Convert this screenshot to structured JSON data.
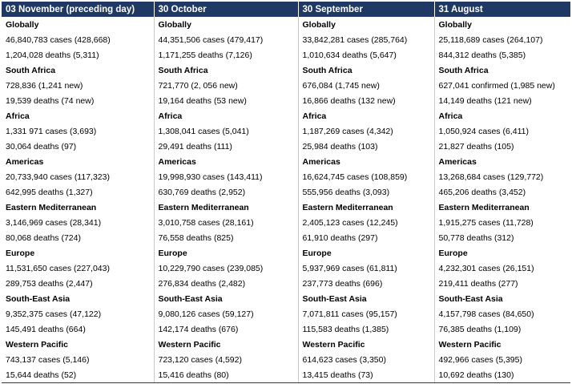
{
  "columns": [
    "03 November (preceding day)",
    "30 October",
    "30 September",
    "31 August"
  ],
  "rows": [
    {
      "type": "region",
      "cells": [
        "Globally",
        "Globally",
        "Globally",
        "Globally"
      ]
    },
    {
      "type": "data",
      "cells": [
        "46,840,783 cases (428,668)",
        "44,351,506 cases (479,417)",
        "33,842,281 cases (285,764)",
        "25,118,689 cases (264,107)"
      ]
    },
    {
      "type": "data",
      "cells": [
        "1,204,028 deaths (5,311)",
        "1,171,255 deaths (7,126)",
        "1,010,634 deaths (5,647)",
        "844,312 deaths (5,385)"
      ]
    },
    {
      "type": "region",
      "cells": [
        "South Africa",
        "South Africa",
        "South Africa",
        "South Africa"
      ]
    },
    {
      "type": "data",
      "cells": [
        "728,836 (1,241 new)",
        "721,770 (2, 056 new)",
        "676,084 (1,745 new)",
        "627,041 confirmed (1,985 new)"
      ]
    },
    {
      "type": "data",
      "cells": [
        "19,539 deaths (74 new)",
        "19,164 deaths (53 new)",
        "16,866 deaths (132 new)",
        "14,149 deaths (121 new)"
      ]
    },
    {
      "type": "region",
      "cells": [
        "Africa",
        "Africa",
        "Africa",
        "Africa"
      ]
    },
    {
      "type": "data",
      "cells": [
        "1,331 971 cases (3,693)",
        "1,308,041 cases (5,041)",
        "1,187,269 cases (4,342)",
        "1,050,924 cases (6,411)"
      ]
    },
    {
      "type": "data",
      "cells": [
        "30,064 deaths (97)",
        "29,491 deaths (111)",
        "25,984 deaths (103)",
        "21,827 deaths (105)"
      ]
    },
    {
      "type": "region",
      "cells": [
        "Americas",
        "Americas",
        "Americas",
        "Americas"
      ]
    },
    {
      "type": "data",
      "cells": [
        "20,733,940 cases (117,323)",
        "19,998,930 cases (143,411)",
        "16,624,745 cases (108,859)",
        "13,268,684 cases (129,772)"
      ]
    },
    {
      "type": "data",
      "cells": [
        "642,995 deaths (1,327)",
        "630,769 deaths (2,952)",
        "555,956 deaths (3,093)",
        "465,206 deaths (3,452)"
      ]
    },
    {
      "type": "region",
      "cells": [
        "Eastern Mediterranean",
        "Eastern Mediterranean",
        "Eastern Mediterranean",
        "Eastern Mediterranean"
      ]
    },
    {
      "type": "data",
      "cells": [
        "3,146,969 cases (28,341)",
        "3,010,758 cases (28,161)",
        "2,405,123 cases (12,245)",
        "1,915,275 cases (11,728)"
      ]
    },
    {
      "type": "data",
      "cells": [
        "80,068 deaths (724)",
        "76,558 deaths (825)",
        "61,910 deaths (297)",
        "50,778 deaths (312)"
      ]
    },
    {
      "type": "region",
      "cells": [
        "Europe",
        "Europe",
        "Europe",
        "Europe"
      ]
    },
    {
      "type": "data",
      "cells": [
        "11,531,650 cases (227,043)",
        "10,229,790 cases (239,085)",
        "5,937,969 cases (61,811)",
        "4,232,301 cases (26,151)"
      ]
    },
    {
      "type": "data",
      "cells": [
        "289,753 deaths (2,447)",
        "276,834 deaths (2,482)",
        "237,773 deaths (696)",
        "219,411 deaths (277)"
      ]
    },
    {
      "type": "region",
      "cells": [
        "South-East Asia",
        "South-East Asia",
        "South-East Asia",
        "South-East Asia"
      ]
    },
    {
      "type": "data",
      "cells": [
        "9,352,375 cases (47,122)",
        "9,080,126 cases (59,127)",
        "7,071,811 cases (95,157)",
        "4,157,798 cases (84,650)"
      ]
    },
    {
      "type": "data",
      "cells": [
        "145,491 deaths (664)",
        "142,174 deaths (676)",
        "115,583 deaths (1,385)",
        "76,385 deaths (1,109)"
      ]
    },
    {
      "type": "region",
      "cells": [
        "Western Pacific",
        "Western Pacific",
        "Western Pacific",
        "Western Pacific"
      ]
    },
    {
      "type": "data",
      "cells": [
        "743,137 cases (5,146)",
        "723,120 cases (4,592)",
        "614,623 cases (3,350)",
        "492,966 cases (5,395)"
      ]
    },
    {
      "type": "data",
      "cells": [
        "15,644 deaths (52)",
        "15,416 deaths (80)",
        "13,415 deaths (73)",
        "10,692 deaths (130)"
      ]
    }
  ]
}
